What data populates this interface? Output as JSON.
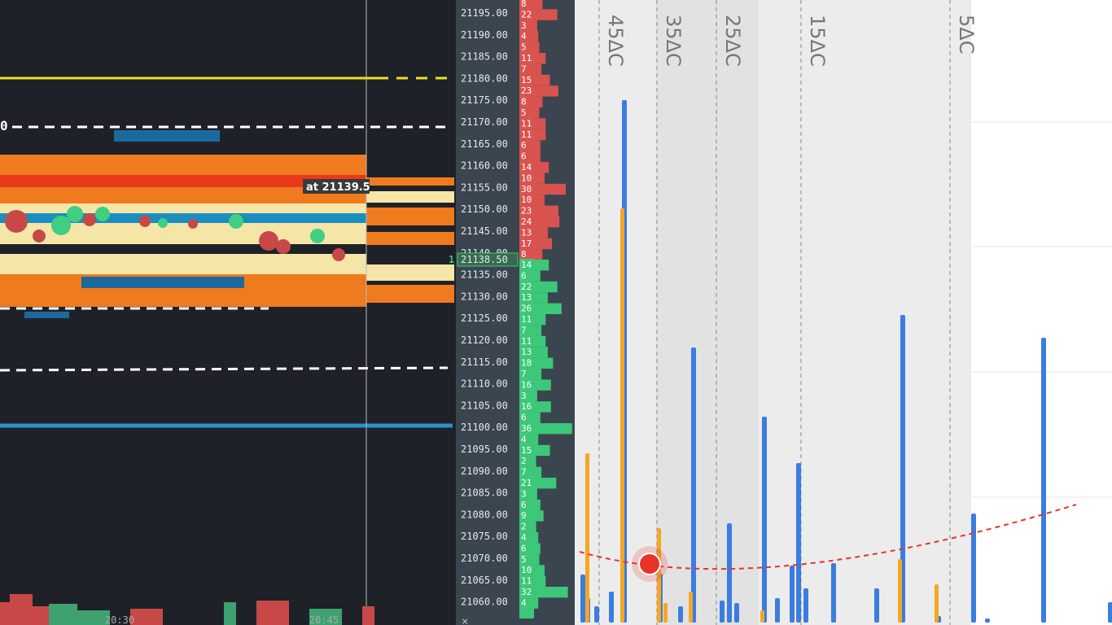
{
  "chart_panel": {
    "level_label": "0",
    "price_tag": "at 21139.5",
    "times": [
      "20:30",
      "20:45"
    ]
  },
  "ladder": {
    "prices": [
      "21195.00",
      "21190.00",
      "21185.00",
      "21180.00",
      "21175.00",
      "21170.00",
      "21165.00",
      "21160.00",
      "21155.00",
      "21150.00",
      "21145.00",
      "21140.00",
      "21135.00",
      "21130.00",
      "21125.00",
      "21120.00",
      "21115.00",
      "21110.00",
      "21105.00",
      "21100.00",
      "21095.00",
      "21090.00",
      "21085.00",
      "21080.00",
      "21075.00",
      "21070.00",
      "21065.00",
      "21060.00"
    ],
    "current_price": "21138.50",
    "current_marker": "1",
    "ask_volumes": [
      8,
      22,
      3,
      4,
      5,
      11,
      7,
      15,
      23,
      8,
      5,
      11,
      11,
      6,
      6,
      14,
      10,
      30,
      10,
      23,
      24,
      13,
      17,
      8
    ],
    "bid_volumes": [
      14,
      6,
      22,
      13,
      26,
      11,
      7,
      11,
      13,
      18,
      7,
      16,
      3,
      16,
      6,
      36,
      4,
      15,
      2,
      7,
      21,
      3,
      6,
      9,
      2,
      4,
      6,
      5,
      10,
      11,
      32,
      4
    ],
    "close_icon": "×"
  },
  "options_panel": {
    "strike_labels": [
      "45ΔC",
      "35ΔC",
      "25ΔC",
      "15ΔC",
      "5ΔC"
    ],
    "blue_values": [
      5.9,
      3,
      2,
      3.8,
      64.2,
      6,
      2,
      33.8,
      2.7,
      12.2,
      2.4,
      25.3,
      3,
      7,
      19.6,
      4.2,
      7.3,
      4.2,
      37.8,
      0.8,
      13.4,
      0.5,
      35,
      2.5
    ],
    "orange_values": [
      20.8,
      50.9,
      11.6,
      2.4,
      3.8,
      1.5,
      7.8,
      4.7
    ]
  }
}
